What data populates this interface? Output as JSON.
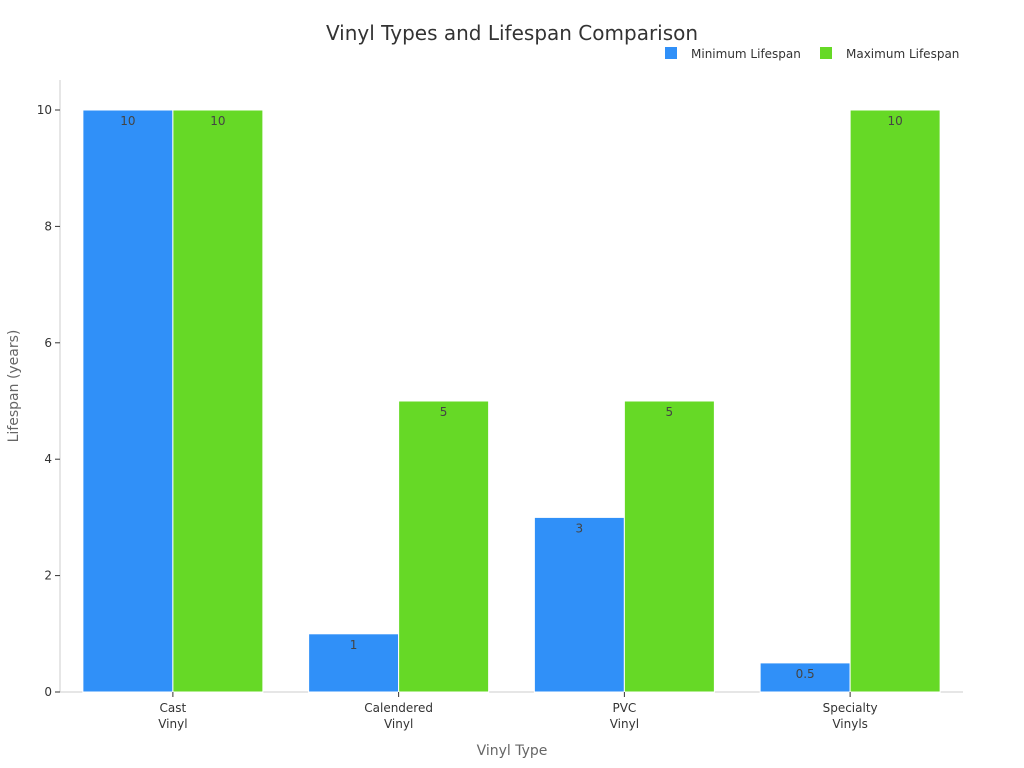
{
  "chart_data": {
    "type": "bar",
    "title": "Vinyl Types and Lifespan Comparison",
    "xlabel": "Vinyl Type",
    "ylabel": "Lifespan (years)",
    "categories": [
      [
        "Cast",
        "Vinyl"
      ],
      [
        "Calendered",
        "Vinyl"
      ],
      [
        "PVC",
        "Vinyl"
      ],
      [
        "Specialty",
        "Vinyls"
      ]
    ],
    "series": [
      {
        "name": "Minimum Lifespan",
        "color": "#3090f8",
        "values": [
          10,
          1,
          3,
          0.5
        ]
      },
      {
        "name": "Maximum Lifespan",
        "color": "#66d926",
        "values": [
          10,
          5,
          5,
          10
        ]
      }
    ],
    "ylim": [
      0,
      10
    ],
    "yticks": [
      0,
      2,
      4,
      6,
      8,
      10
    ],
    "grid": false,
    "legend_position": "top-right"
  }
}
